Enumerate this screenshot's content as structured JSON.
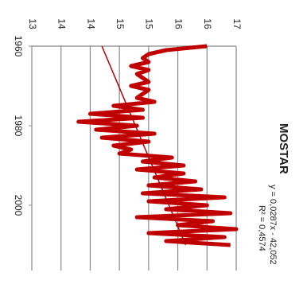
{
  "chart_data": {
    "type": "line",
    "title": "MOSTAR",
    "annotations": [
      "y = 0,0287x - 42,052",
      "R² = 0,4574"
    ],
    "x": [
      1960,
      1961,
      1962,
      1963,
      1964,
      1965,
      1966,
      1967,
      1968,
      1969,
      1970,
      1971,
      1972,
      1973,
      1974,
      1975,
      1976,
      1977,
      1978,
      1979,
      1980,
      1981,
      1982,
      1983,
      1984,
      1985,
      1986,
      1987,
      1988,
      1989,
      1990,
      1991,
      1992,
      1993,
      1994,
      1995,
      1996,
      1997,
      1998,
      1999,
      2000,
      2001,
      2002,
      2003,
      2004,
      2005,
      2006,
      2007,
      2008,
      2009,
      2010
    ],
    "series": [
      {
        "color": "#c00000",
        "values": [
          16.0,
          15.3,
          15.0,
          14.9,
          15.0,
          14.7,
          15.0,
          14.8,
          14.9,
          15.0,
          14.7,
          15.0,
          14.9,
          14.8,
          15.1,
          14.4,
          14.9,
          14.0,
          14.9,
          13.8,
          14.8,
          14.1,
          15.1,
          14.2,
          15.0,
          14.4,
          14.7,
          14.5,
          15.4,
          14.9,
          15.6,
          14.8,
          15.6,
          15.1,
          15.8,
          15.0,
          15.9,
          14.9,
          16.3,
          15.0,
          16.0,
          15.3,
          16.4,
          14.8,
          16.1,
          15.5,
          16.5,
          15.0,
          16.3,
          15.3,
          16.4
        ]
      }
    ],
    "trendline": {
      "slope": 0.0287,
      "intercept": -42.052,
      "color": "#b00000"
    },
    "xlim": [
      1960,
      2010
    ],
    "xticks": [
      1960,
      1980,
      2000
    ],
    "ylim": [
      13,
      16.5
    ],
    "yticks": [
      13,
      {
        "value": 13.5,
        "label": "14"
      },
      14,
      {
        "value": 14.5,
        "label": "15"
      },
      15,
      {
        "value": 15.5,
        "label": "16"
      },
      16,
      {
        "value": 16.5,
        "label": "17"
      }
    ],
    "grid": true
  }
}
